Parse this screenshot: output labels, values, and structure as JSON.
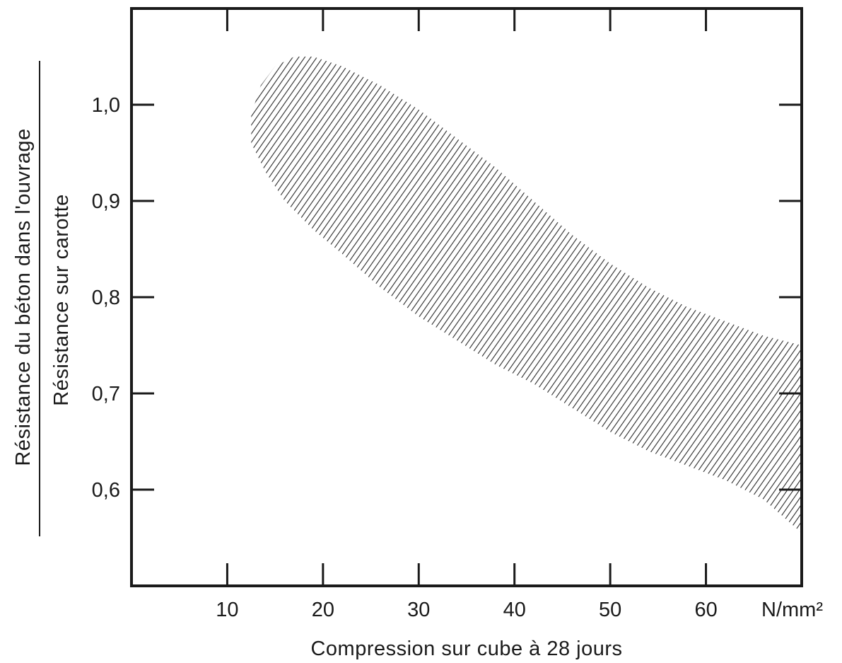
{
  "chart_data": {
    "type": "area",
    "title": "",
    "xlabel": "Compression sur cube à 28 jours",
    "x_unit": "N/mm²",
    "ylabel_numerator": "Résistance du béton dans l'ouvrage",
    "ylabel_denominator": "Résistance sur carotte",
    "xlim": [
      0,
      70
    ],
    "ylim": [
      0.5,
      1.1
    ],
    "x_ticks": [
      10,
      20,
      30,
      40,
      50,
      60
    ],
    "x_tick_labels": [
      "10",
      "20",
      "30",
      "40",
      "50",
      "60"
    ],
    "y_ticks": [
      0.6,
      0.7,
      0.8,
      0.9,
      1.0
    ],
    "y_tick_labels": [
      "0,6",
      "0,7",
      "0,8",
      "0,9",
      "1,0"
    ],
    "grid": false,
    "fill_style": "hatched",
    "series": [
      {
        "band_upper": [
          [
            12.5,
            0.99
          ],
          [
            13.5,
            1.02
          ],
          [
            15,
            1.04
          ],
          [
            17,
            1.05
          ],
          [
            19,
            1.05
          ],
          [
            22,
            1.04
          ],
          [
            26,
            1.02
          ],
          [
            30,
            0.995
          ],
          [
            34,
            0.965
          ],
          [
            38,
            0.935
          ],
          [
            42,
            0.9
          ],
          [
            46,
            0.865
          ],
          [
            50,
            0.835
          ],
          [
            54,
            0.81
          ],
          [
            58,
            0.79
          ],
          [
            62,
            0.775
          ],
          [
            66,
            0.76
          ],
          [
            70,
            0.75
          ]
        ],
        "band_lower": [
          [
            12.5,
            0.96
          ],
          [
            14,
            0.93
          ],
          [
            16,
            0.9
          ],
          [
            19,
            0.87
          ],
          [
            22,
            0.845
          ],
          [
            26,
            0.81
          ],
          [
            30,
            0.78
          ],
          [
            34,
            0.755
          ],
          [
            38,
            0.73
          ],
          [
            42,
            0.71
          ],
          [
            46,
            0.685
          ],
          [
            50,
            0.66
          ],
          [
            54,
            0.64
          ],
          [
            58,
            0.625
          ],
          [
            62,
            0.61
          ],
          [
            66,
            0.59
          ],
          [
            70,
            0.555
          ]
        ]
      }
    ]
  }
}
